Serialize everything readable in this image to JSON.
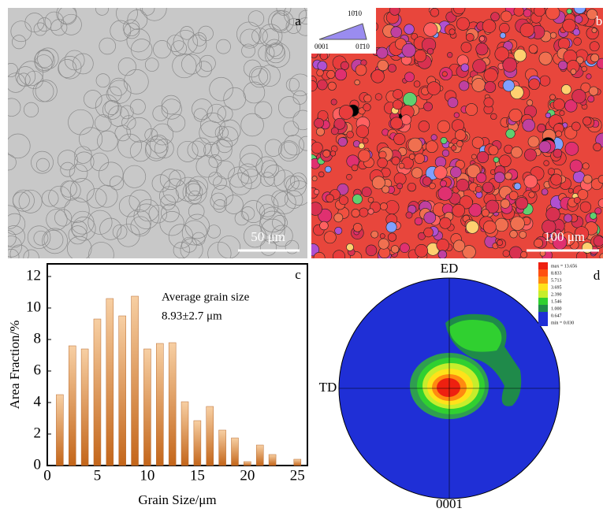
{
  "chart_data": {
    "type": "bar",
    "label": "c",
    "annotation": [
      "Average grain size",
      "8.93±2.7 μm"
    ],
    "xlabel": "Grain Size/μm",
    "ylabel": "Area Fraction/%",
    "x": [
      1.25,
      2.5,
      3.75,
      5,
      6.25,
      7.5,
      8.75,
      10,
      11.25,
      12.5,
      13.75,
      15,
      16.25,
      17.5,
      18.75,
      20,
      21.25,
      22.5,
      23.75,
      25
    ],
    "values": [
      4.5,
      7.6,
      7.4,
      9.3,
      10.6,
      9.5,
      10.75,
      7.4,
      7.75,
      7.8,
      4.05,
      2.85,
      3.75,
      2.25,
      1.75,
      0.25,
      1.3,
      0.7,
      0,
      0.4
    ],
    "xlim": [
      0,
      26
    ],
    "xticks": [
      0,
      5,
      10,
      15,
      20,
      25
    ],
    "ylim": [
      0,
      12.8
    ],
    "yticks": [
      0,
      2,
      4,
      6,
      8,
      10,
      12
    ]
  },
  "panel_a": {
    "label": "a",
    "scale_bar": "50 μm"
  },
  "panel_b": {
    "label": "b",
    "scale_bar": "100 μm",
    "ipf_labels": [
      "10̄10",
      "0001",
      "01̄10"
    ]
  },
  "pole_figure": {
    "label": "d",
    "top": "ED",
    "left": "TD",
    "bottom": "0001",
    "legend": [
      "max = 13.656",
      "8.833",
      "5.713",
      "3.695",
      "2.390",
      "1.546",
      "1.000",
      "0.647",
      "min = 0.030"
    ]
  }
}
